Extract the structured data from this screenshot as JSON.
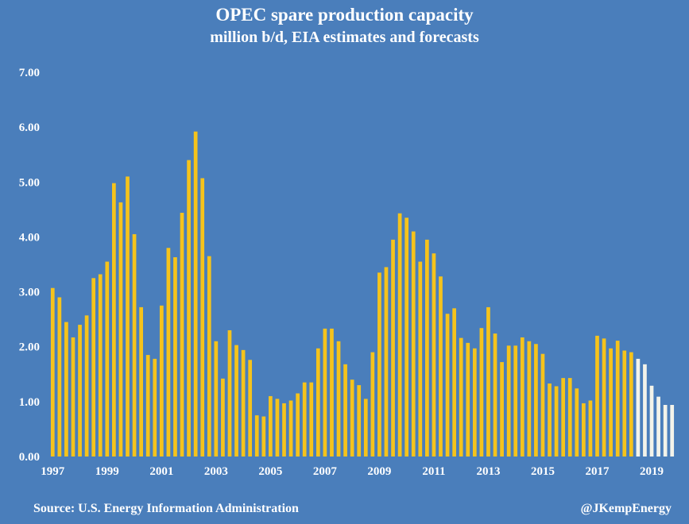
{
  "chart_data": {
    "type": "bar",
    "title": "OPEC spare production capacity",
    "subtitle": "million b/d, EIA estimates and forecasts",
    "xlabel": "",
    "ylabel": "",
    "ylim": [
      0,
      7
    ],
    "y_ticks": [
      "0.00",
      "1.00",
      "2.00",
      "3.00",
      "4.00",
      "5.00",
      "6.00",
      "7.00"
    ],
    "x_ticks": [
      "1997",
      "1999",
      "2001",
      "2003",
      "2005",
      "2007",
      "2009",
      "2011",
      "2013",
      "2015",
      "2017",
      "2019"
    ],
    "first_period": "1997 Q1",
    "frequency": "quarterly",
    "estimate_color": "#f5c31c",
    "forecast_color": "#f3f3ea",
    "forecast_start_index": 86,
    "values": [
      3.07,
      2.9,
      2.45,
      2.17,
      2.4,
      2.57,
      3.25,
      3.32,
      3.55,
      4.98,
      4.63,
      5.1,
      4.05,
      2.72,
      1.85,
      1.78,
      2.75,
      3.8,
      3.63,
      4.44,
      5.4,
      5.92,
      5.07,
      3.65,
      2.1,
      1.42,
      2.3,
      2.03,
      1.94,
      1.76,
      0.75,
      0.73,
      1.1,
      1.05,
      0.97,
      1.02,
      1.15,
      1.35,
      1.35,
      1.97,
      2.33,
      2.33,
      2.1,
      1.68,
      1.4,
      1.3,
      1.05,
      1.9,
      3.35,
      3.45,
      3.95,
      4.43,
      4.35,
      4.1,
      3.55,
      3.95,
      3.7,
      3.28,
      2.6,
      2.7,
      2.16,
      2.07,
      1.97,
      2.34,
      2.72,
      2.24,
      1.72,
      2.02,
      2.02,
      2.17,
      2.1,
      2.05,
      1.87,
      1.33,
      1.28,
      1.43,
      1.43,
      1.24,
      0.97,
      1.02,
      2.2,
      2.15,
      1.97,
      2.11,
      1.93,
      1.9,
      1.78,
      1.68,
      1.29,
      1.09,
      0.94,
      0.94
    ]
  },
  "source": "Source: U.S. Energy Information Administration",
  "handle": "@JKempEnergy"
}
